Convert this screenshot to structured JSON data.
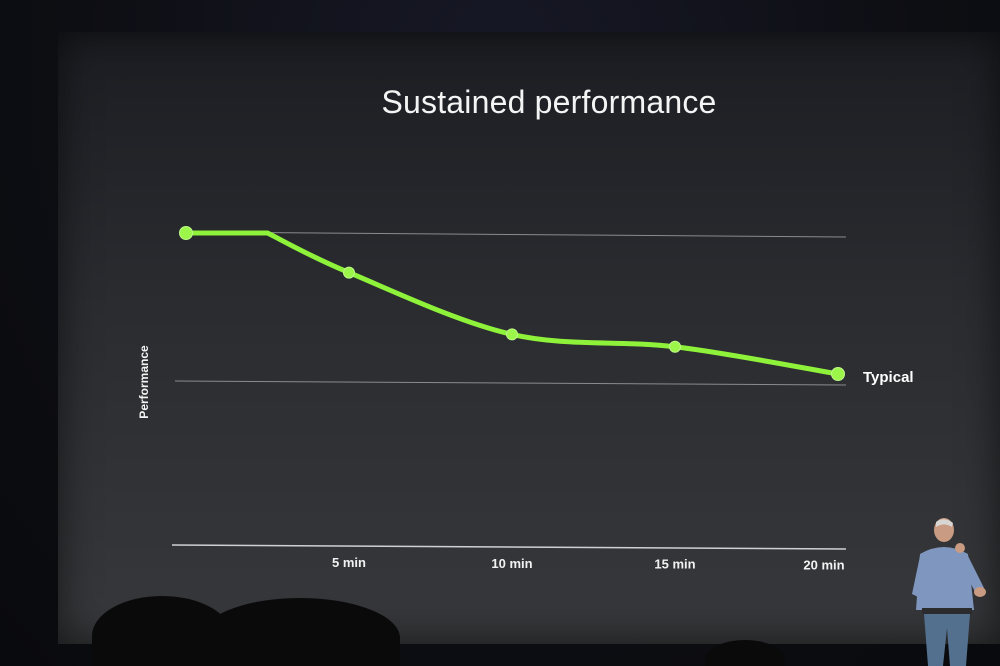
{
  "chart_data": {
    "type": "line",
    "title": "Sustained performance",
    "ylabel": "Performance",
    "xlabel": "",
    "x_ticks": [
      "5 min",
      "10 min",
      "15 min",
      "20 min"
    ],
    "x_tick_values": [
      5,
      10,
      15,
      20
    ],
    "xlim": [
      0,
      20
    ],
    "grid": true,
    "series": [
      {
        "name": "Typical",
        "color": "#8ff23a",
        "x": [
          0,
          5,
          10,
          15,
          20
        ],
        "y": [
          100,
          84,
          59,
          54,
          43
        ]
      }
    ],
    "reference_lines_y": [
      100,
      43
    ],
    "legend": "series label at right end of line"
  }
}
